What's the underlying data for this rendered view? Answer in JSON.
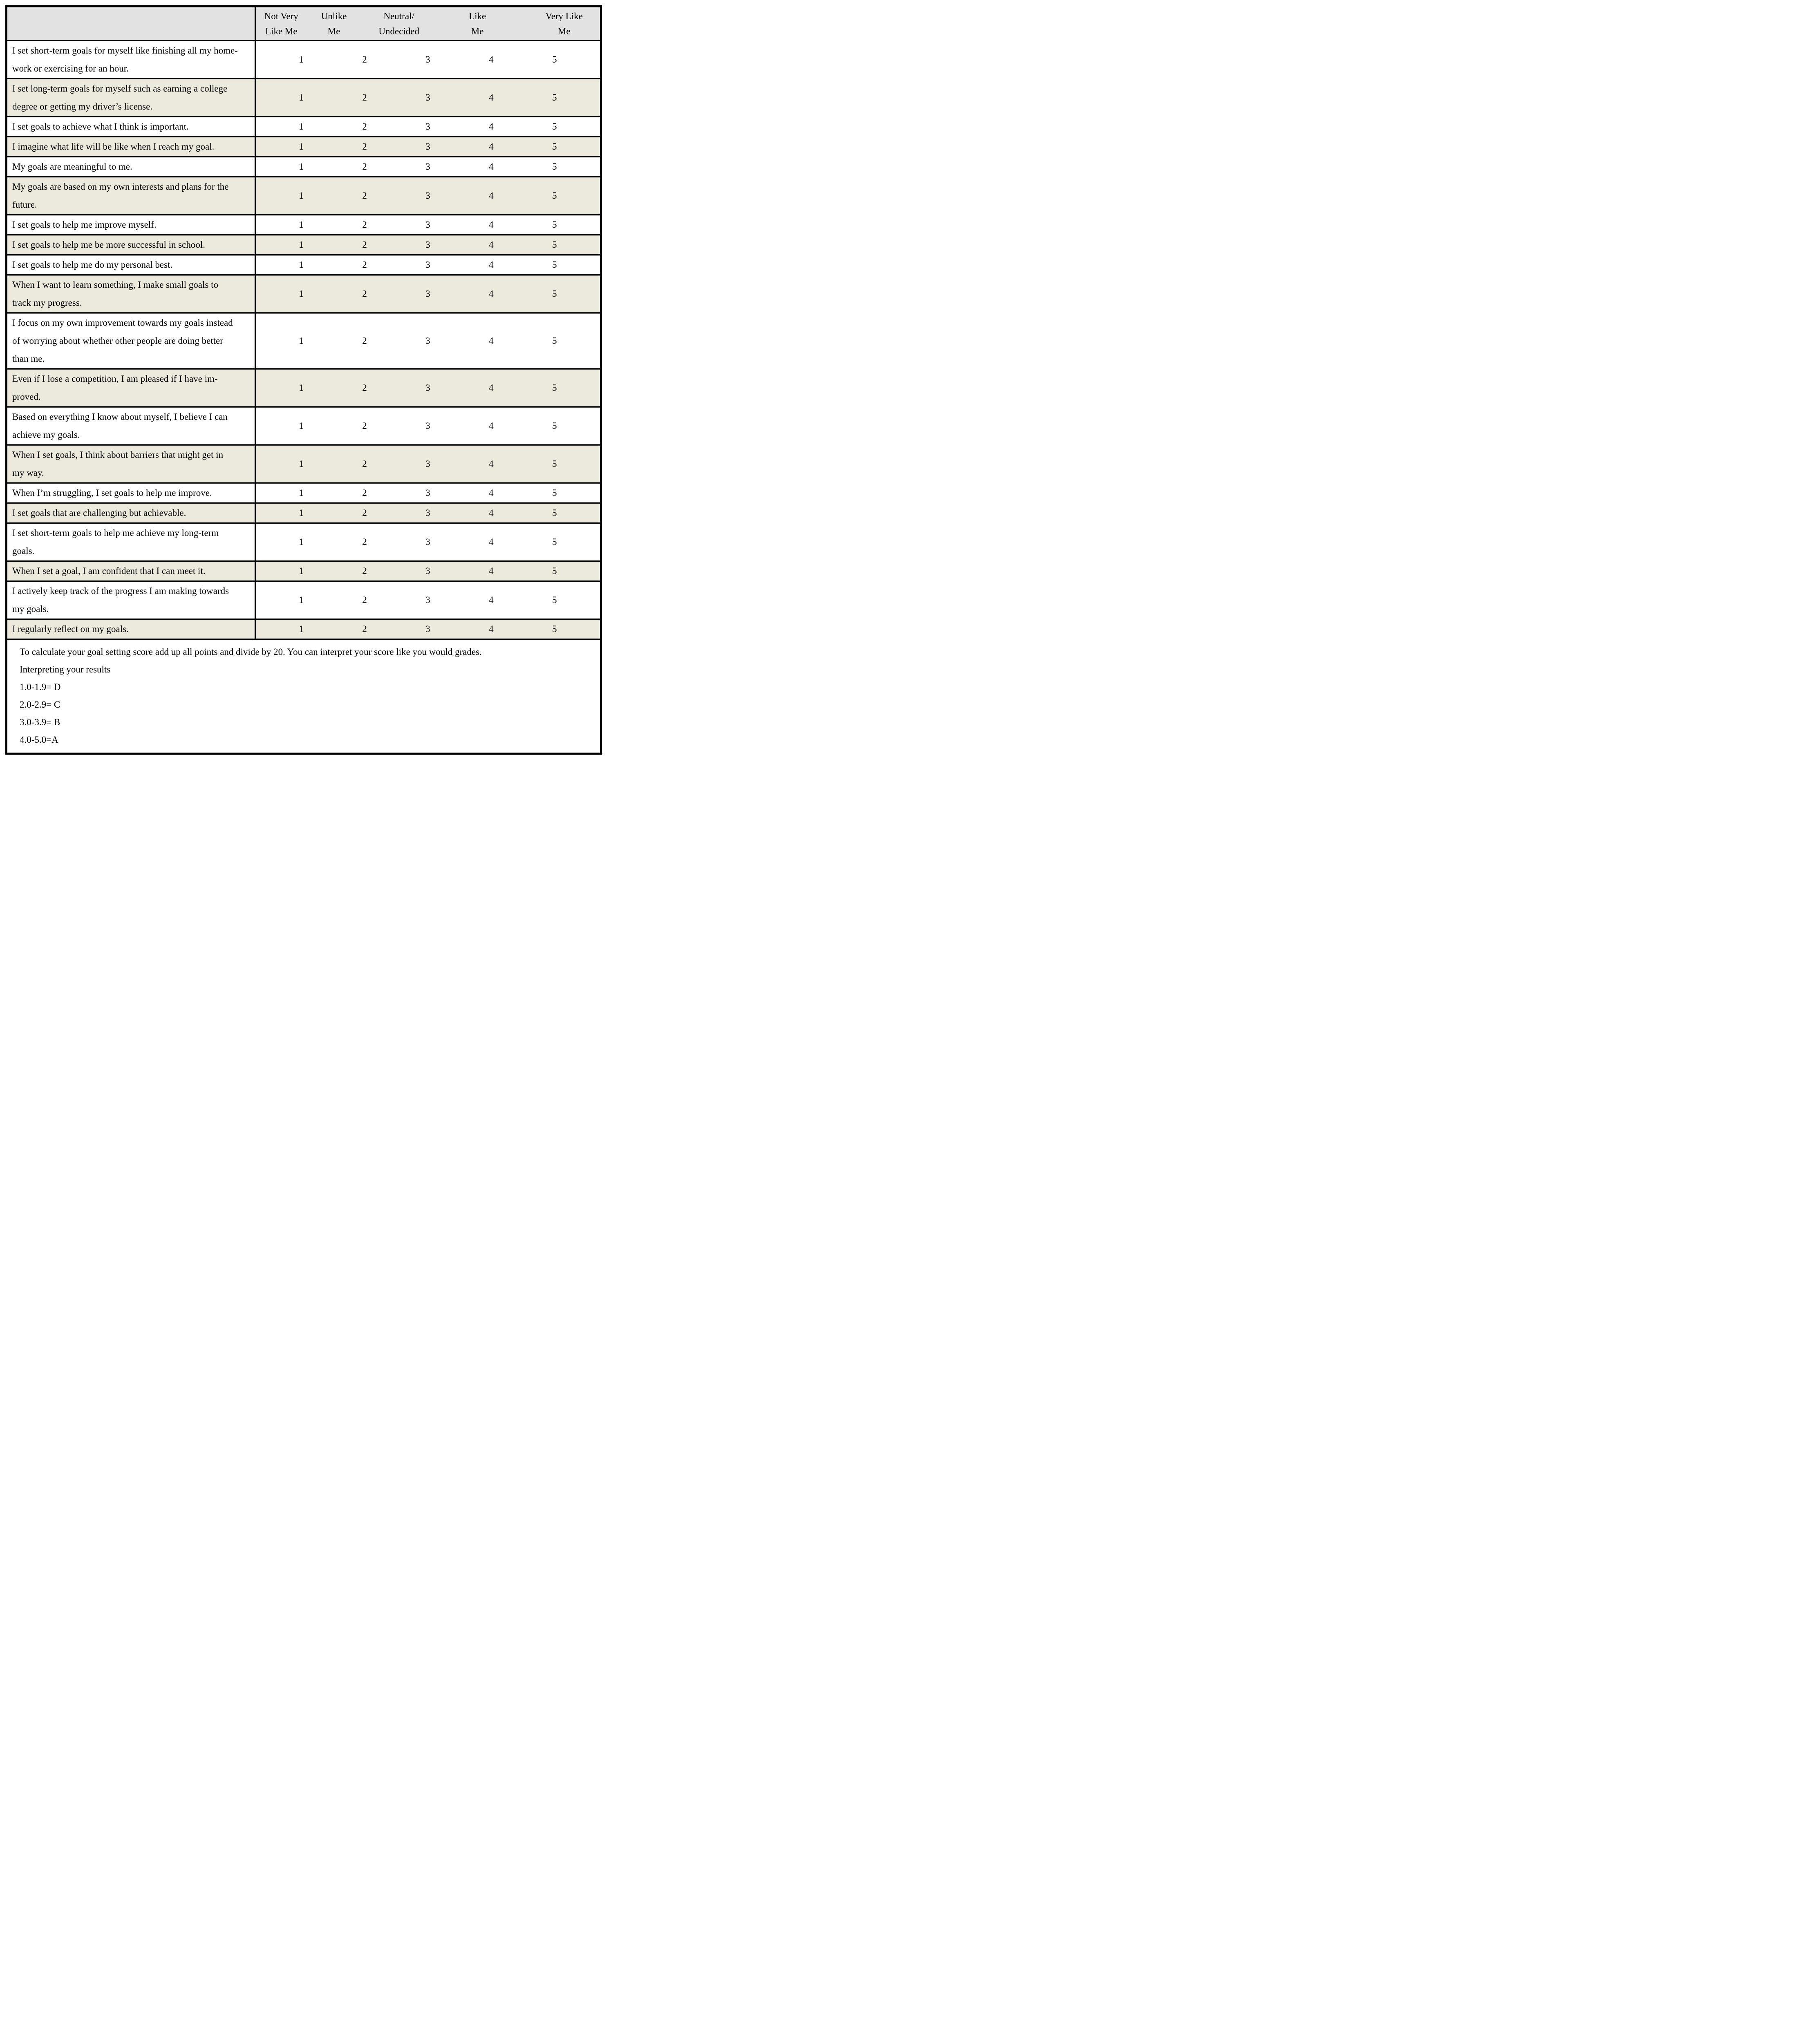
{
  "header": {
    "columns": [
      {
        "label": "Not Very Like Me",
        "lines": [
          "Not Very",
          "Like Me"
        ]
      },
      {
        "label": "Unlike Me",
        "lines": [
          "Unlike",
          "Me"
        ]
      },
      {
        "label": "Neutral/Undecided",
        "lines": [
          "Neutral/",
          "Undecided"
        ]
      },
      {
        "label": "Like Me",
        "lines": [
          "Like",
          "Me"
        ]
      },
      {
        "label": "Very Like Me",
        "lines": [
          "Very Like",
          "Me"
        ]
      }
    ]
  },
  "scale": [
    "1",
    "2",
    "3",
    "4",
    "5"
  ],
  "rows": [
    {
      "lines": [
        "I set short-term goals for myself like finishing all my home-",
        "work or exercising for an hour."
      ]
    },
    {
      "lines": [
        "I set long-term goals for myself such as earning a college",
        "degree or getting my driver’s license."
      ]
    },
    {
      "lines": [
        "I set goals to achieve what I think is important."
      ]
    },
    {
      "lines": [
        "I imagine what life will be like when I reach my goal."
      ]
    },
    {
      "lines": [
        "My goals are meaningful to me."
      ]
    },
    {
      "lines": [
        "My goals are based on my own interests and plans for the",
        "future."
      ]
    },
    {
      "lines": [
        "I set goals to help me improve myself."
      ]
    },
    {
      "lines": [
        "I set goals to help me be more successful in school."
      ]
    },
    {
      "lines": [
        "I set goals to help me do my personal best."
      ]
    },
    {
      "lines": [
        "When I want to learn something, I make small goals to",
        "track my progress."
      ]
    },
    {
      "lines": [
        "I focus on my own improvement towards my goals instead",
        "of worrying about whether other people are doing better",
        "than me."
      ]
    },
    {
      "lines": [
        "Even if I lose a competition, I am pleased if I have im-",
        "proved."
      ]
    },
    {
      "lines": [
        "Based on everything I know about myself, I believe I can",
        "achieve my goals."
      ]
    },
    {
      "lines": [
        "When I set goals, I think about barriers that might get in",
        "my way."
      ]
    },
    {
      "lines": [
        "When I’m struggling, I set goals to help me improve."
      ]
    },
    {
      "lines": [
        "I set goals that are challenging but achievable."
      ]
    },
    {
      "lines": [
        "I set short-term goals to help me achieve my long-term",
        "goals."
      ]
    },
    {
      "lines": [
        "When I set a goal, I am confident that I can meet it."
      ]
    },
    {
      "lines": [
        "I actively keep track of the progress I am making towards",
        "my goals."
      ]
    },
    {
      "lines": [
        "I regularly reflect on my goals."
      ]
    }
  ],
  "footer": {
    "lines": [
      "To calculate your goal setting score add up all points and divide by 20. You can interpret your score like you would grades.",
      "Interpreting your results",
      "1.0-1.9= D",
      "2.0-2.9= C",
      "3.0-3.9= B",
      "4.0-5.0=A"
    ]
  },
  "colors": {
    "header_bg": "#e2e2e2",
    "shaded_row_bg": "#ece9dd",
    "border": "#000000",
    "page_bg": "#ffffff"
  }
}
